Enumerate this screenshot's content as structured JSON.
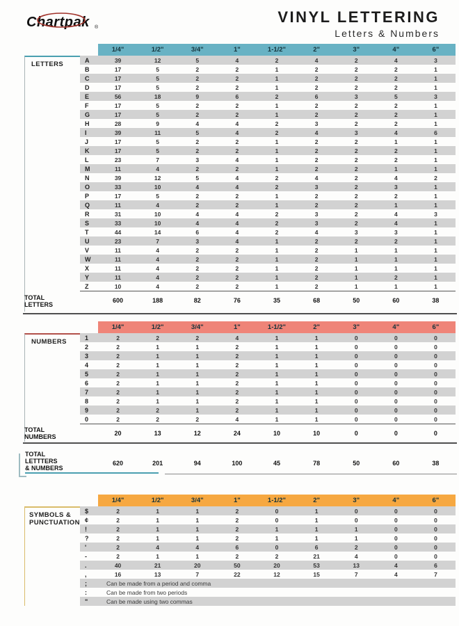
{
  "header": {
    "logo": "Chartpak",
    "registered": "®",
    "title": "VINYL LETTERING",
    "subtitle": "Letters & Numbers"
  },
  "sizes": [
    "1/4\"",
    "1/2\"",
    "3/4\"",
    "1\"",
    "1-1/2\"",
    "2\"",
    "3\"",
    "4\"",
    "6\""
  ],
  "letters": {
    "label": "LETTERS",
    "rows": [
      {
        "key": "A",
        "values": [
          39,
          12,
          5,
          4,
          2,
          4,
          2,
          4,
          3
        ]
      },
      {
        "key": "B",
        "values": [
          17,
          5,
          2,
          2,
          1,
          2,
          2,
          2,
          1
        ]
      },
      {
        "key": "C",
        "values": [
          17,
          5,
          2,
          2,
          1,
          2,
          2,
          2,
          1
        ]
      },
      {
        "key": "D",
        "values": [
          17,
          5,
          2,
          2,
          1,
          2,
          2,
          2,
          1
        ]
      },
      {
        "key": "E",
        "values": [
          56,
          18,
          9,
          6,
          2,
          6,
          3,
          5,
          3
        ]
      },
      {
        "key": "F",
        "values": [
          17,
          5,
          2,
          2,
          1,
          2,
          2,
          2,
          1
        ]
      },
      {
        "key": "G",
        "values": [
          17,
          5,
          2,
          2,
          1,
          2,
          2,
          2,
          1
        ]
      },
      {
        "key": "H",
        "values": [
          28,
          9,
          4,
          4,
          2,
          3,
          2,
          2,
          1
        ]
      },
      {
        "key": "I",
        "values": [
          39,
          11,
          5,
          4,
          2,
          4,
          3,
          4,
          6
        ]
      },
      {
        "key": "J",
        "values": [
          17,
          5,
          2,
          2,
          1,
          2,
          2,
          1,
          1
        ]
      },
      {
        "key": "K",
        "values": [
          17,
          5,
          2,
          2,
          1,
          2,
          2,
          2,
          1
        ]
      },
      {
        "key": "L",
        "values": [
          23,
          7,
          3,
          4,
          1,
          2,
          2,
          2,
          1
        ]
      },
      {
        "key": "M",
        "values": [
          11,
          4,
          2,
          2,
          1,
          2,
          2,
          1,
          1
        ]
      },
      {
        "key": "N",
        "values": [
          39,
          12,
          5,
          4,
          2,
          4,
          2,
          4,
          2
        ]
      },
      {
        "key": "O",
        "values": [
          33,
          10,
          4,
          4,
          2,
          3,
          2,
          3,
          1
        ]
      },
      {
        "key": "P",
        "values": [
          17,
          5,
          2,
          2,
          1,
          2,
          2,
          2,
          1
        ]
      },
      {
        "key": "Q",
        "values": [
          11,
          4,
          2,
          2,
          1,
          2,
          2,
          1,
          1
        ]
      },
      {
        "key": "R",
        "values": [
          31,
          10,
          4,
          4,
          2,
          3,
          2,
          4,
          3
        ]
      },
      {
        "key": "S",
        "values": [
          33,
          10,
          4,
          4,
          2,
          3,
          2,
          4,
          1
        ]
      },
      {
        "key": "T",
        "values": [
          44,
          14,
          6,
          4,
          2,
          4,
          3,
          3,
          1
        ]
      },
      {
        "key": "U",
        "values": [
          23,
          7,
          3,
          4,
          1,
          2,
          2,
          2,
          1
        ]
      },
      {
        "key": "V",
        "values": [
          11,
          4,
          2,
          2,
          1,
          2,
          1,
          1,
          1
        ]
      },
      {
        "key": "W",
        "values": [
          11,
          4,
          2,
          2,
          1,
          2,
          1,
          1,
          1
        ]
      },
      {
        "key": "X",
        "values": [
          11,
          4,
          2,
          2,
          1,
          2,
          1,
          1,
          1
        ]
      },
      {
        "key": "Y",
        "values": [
          11,
          4,
          2,
          2,
          1,
          2,
          1,
          2,
          1
        ]
      },
      {
        "key": "Z",
        "values": [
          10,
          4,
          2,
          2,
          1,
          2,
          1,
          1,
          1
        ]
      }
    ],
    "total_label_line1": "TOTAL",
    "total_label_line2": "LETTERS",
    "totals": [
      600,
      188,
      82,
      76,
      35,
      68,
      50,
      60,
      38
    ]
  },
  "numbers": {
    "label": "NUMBERS",
    "rows": [
      {
        "key": "1",
        "values": [
          2,
          2,
          2,
          4,
          1,
          1,
          0,
          0,
          0
        ]
      },
      {
        "key": "2",
        "values": [
          2,
          1,
          1,
          2,
          1,
          1,
          0,
          0,
          0
        ]
      },
      {
        "key": "3",
        "values": [
          2,
          1,
          1,
          2,
          1,
          1,
          0,
          0,
          0
        ]
      },
      {
        "key": "4",
        "values": [
          2,
          1,
          1,
          2,
          1,
          1,
          0,
          0,
          0
        ]
      },
      {
        "key": "5",
        "values": [
          2,
          1,
          1,
          2,
          1,
          1,
          0,
          0,
          0
        ]
      },
      {
        "key": "6",
        "values": [
          2,
          1,
          1,
          2,
          1,
          1,
          0,
          0,
          0
        ]
      },
      {
        "key": "7",
        "values": [
          2,
          1,
          1,
          2,
          1,
          1,
          0,
          0,
          0
        ]
      },
      {
        "key": "8",
        "values": [
          2,
          1,
          1,
          2,
          1,
          1,
          0,
          0,
          0
        ]
      },
      {
        "key": "9",
        "values": [
          2,
          2,
          1,
          2,
          1,
          1,
          0,
          0,
          0
        ]
      },
      {
        "key": "0",
        "values": [
          2,
          2,
          2,
          4,
          1,
          1,
          0,
          0,
          0
        ]
      }
    ],
    "total_label_line1": "TOTAL",
    "total_label_line2": "NUMBERS",
    "totals": [
      20,
      13,
      12,
      24,
      10,
      10,
      0,
      0,
      0
    ]
  },
  "grand_total": {
    "label_line1": "TOTAL",
    "label_line2": "LETTTERS",
    "label_line3": "& NUMBERS",
    "totals": [
      620,
      201,
      94,
      100,
      45,
      78,
      50,
      60,
      38
    ]
  },
  "symbols": {
    "label_line1": "SYMBOLS &",
    "label_line2": "PUNCTUATION",
    "rows": [
      {
        "key": "$",
        "values": [
          2,
          1,
          1,
          2,
          0,
          1,
          0,
          0,
          0
        ]
      },
      {
        "key": "¢",
        "values": [
          2,
          1,
          1,
          2,
          0,
          1,
          0,
          0,
          0
        ]
      },
      {
        "key": "!",
        "values": [
          2,
          1,
          1,
          2,
          1,
          1,
          1,
          0,
          0
        ]
      },
      {
        "key": "?",
        "values": [
          2,
          1,
          1,
          2,
          1,
          1,
          1,
          0,
          0
        ]
      },
      {
        "key": "'",
        "values": [
          2,
          4,
          4,
          6,
          0,
          6,
          2,
          0,
          0
        ]
      },
      {
        "key": "-",
        "values": [
          2,
          1,
          1,
          2,
          2,
          21,
          4,
          0,
          0
        ]
      },
      {
        "key": ".",
        "values": [
          40,
          21,
          20,
          50,
          20,
          53,
          13,
          4,
          6
        ]
      },
      {
        "key": ",",
        "values": [
          16,
          13,
          7,
          22,
          12,
          15,
          7,
          4,
          7
        ]
      }
    ],
    "notes": [
      {
        "key": ";",
        "text": "Can be made from a period and comma"
      },
      {
        "key": ":",
        "text": "Can be made from two periods"
      },
      {
        "key": "\"",
        "text": "Can be made using two commas"
      }
    ]
  },
  "colors": {
    "letters_header": "#68B2C4",
    "numbers_header": "#EF8478",
    "symbols_header": "#F6A841",
    "stripe": "#D2D2D2",
    "teal_accent": "#4A9FB0",
    "salmon_accent": "#B25049",
    "gold_accent": "#D9BC6A",
    "logo_ring": "#A03028"
  }
}
